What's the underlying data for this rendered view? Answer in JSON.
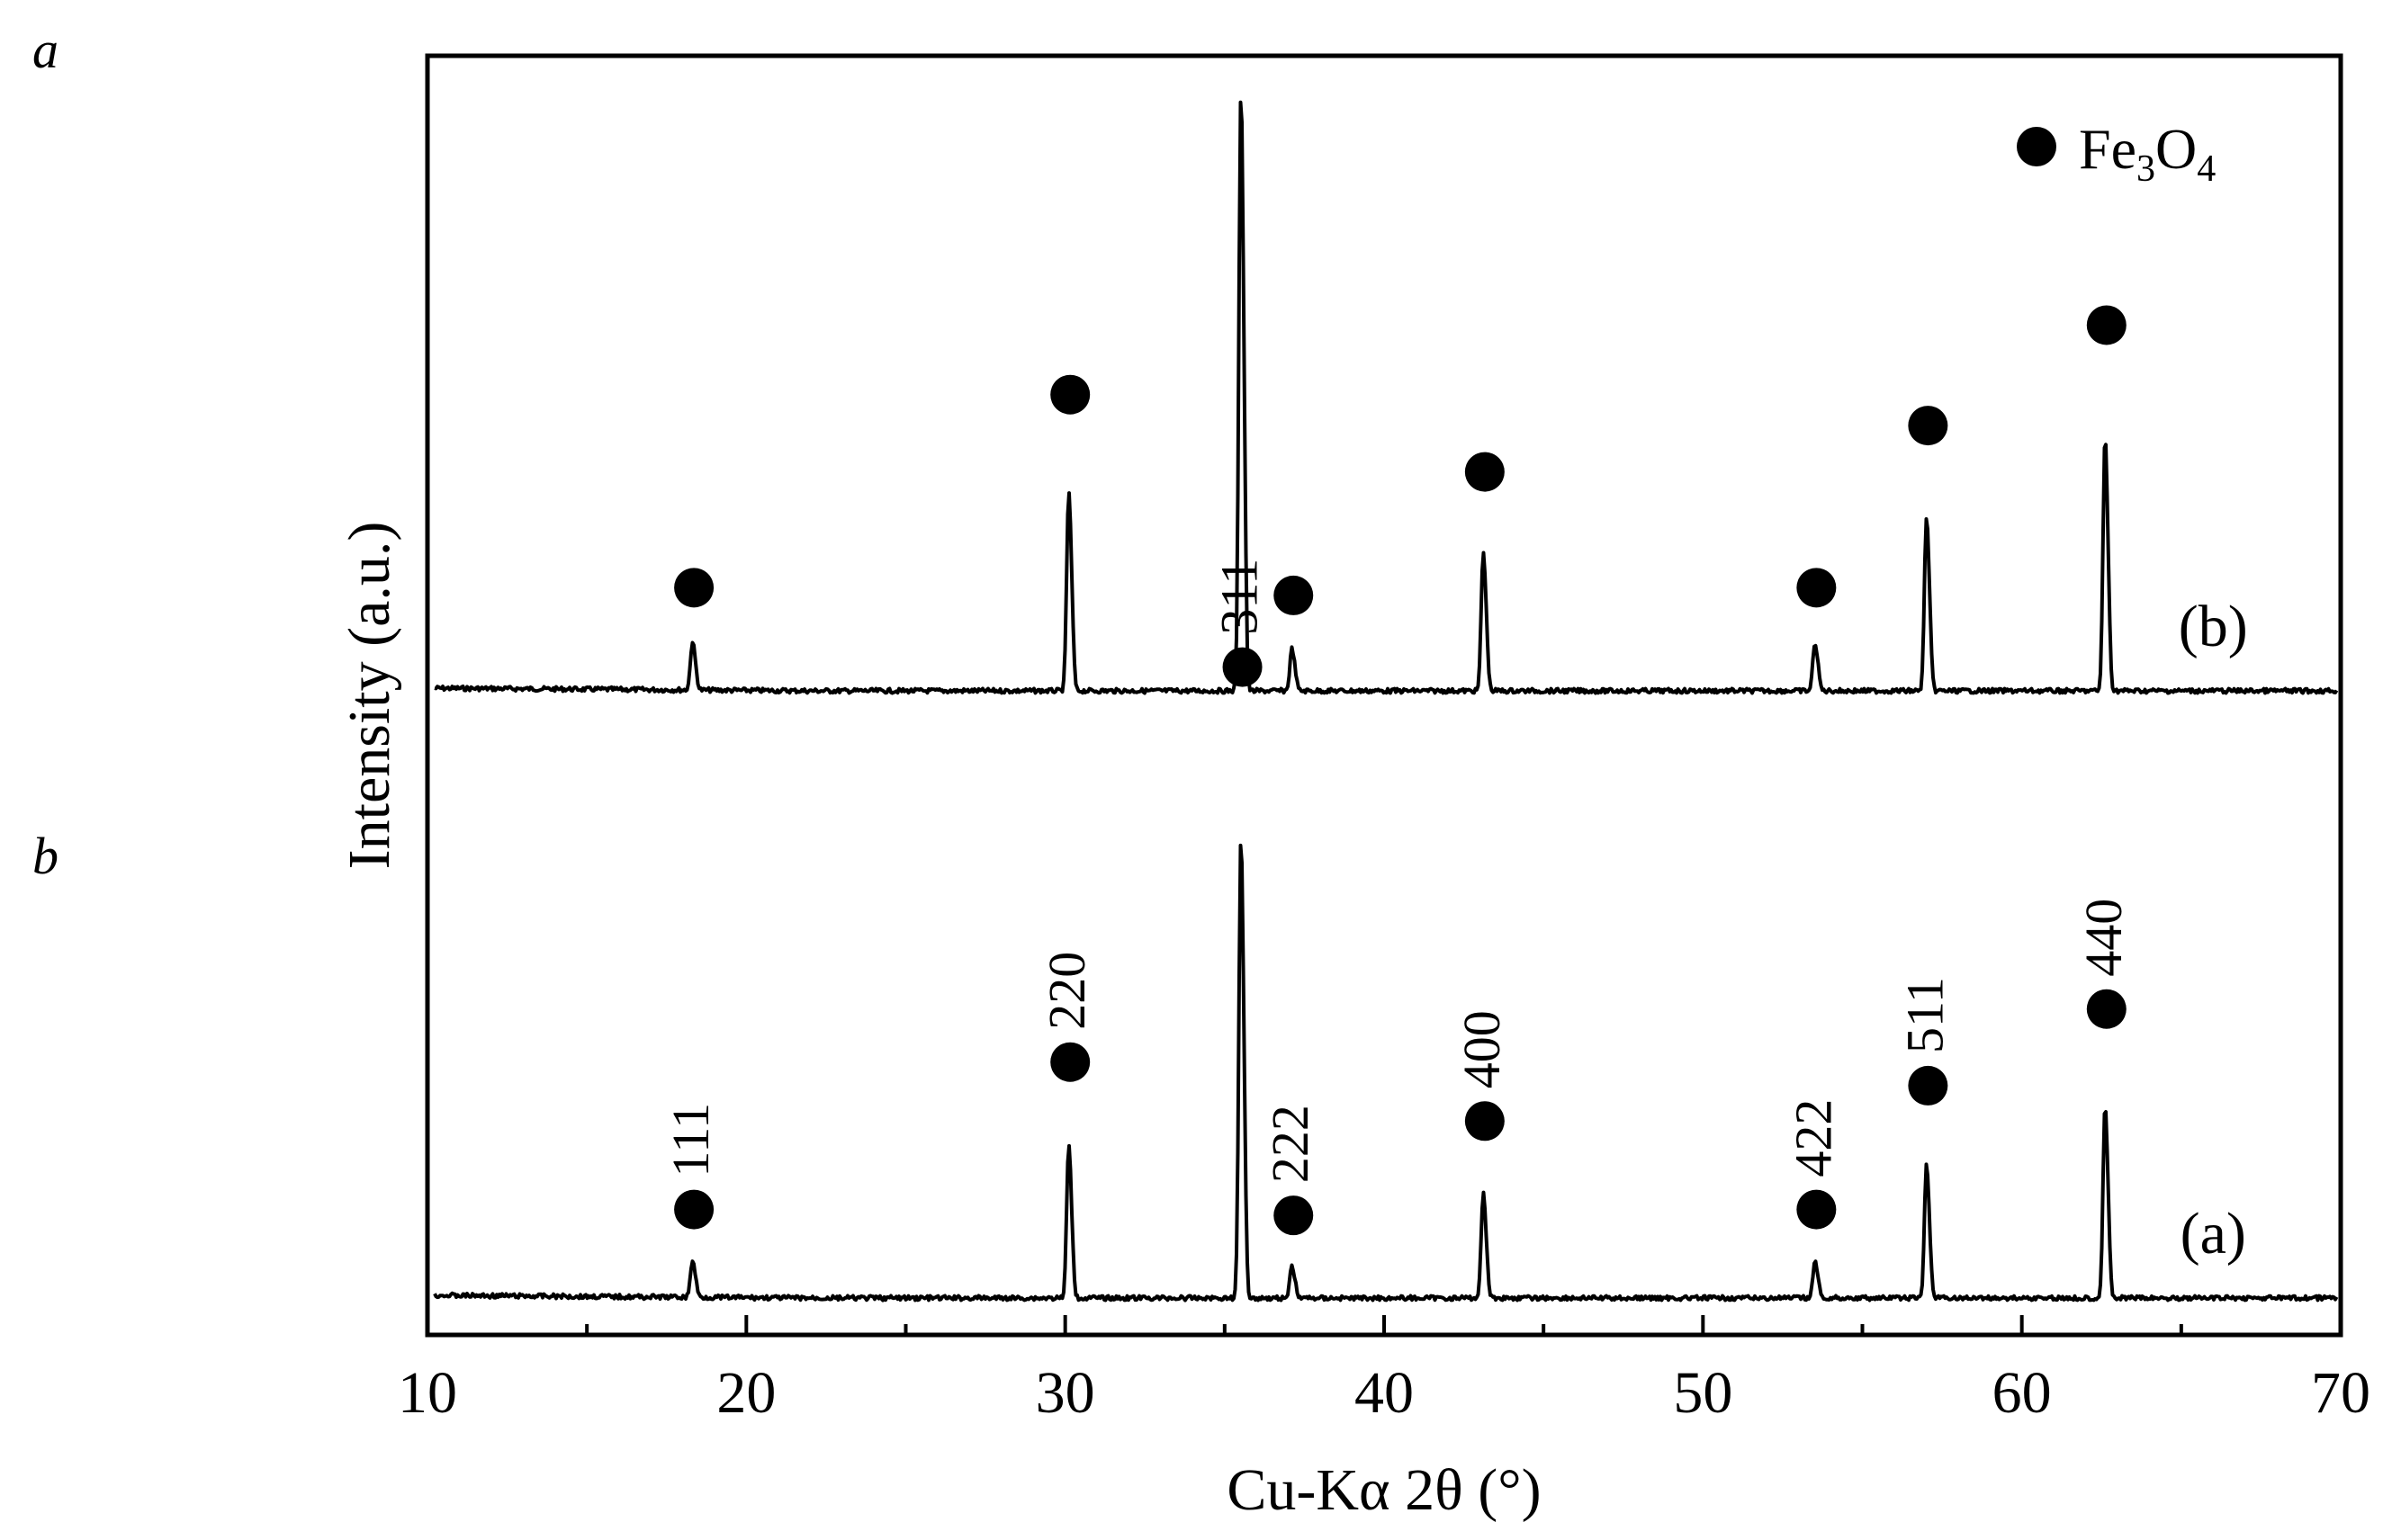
{
  "panel_labels": [
    "a",
    "b"
  ],
  "chart_data": {
    "type": "line",
    "title": "",
    "xlabel": "Cu-Kα 2θ (°)",
    "ylabel": "Intensity (a.u.)",
    "xlim": [
      10,
      70
    ],
    "x_ticks": [
      "10",
      "20",
      "30",
      "40",
      "50",
      "60",
      "70"
    ],
    "y_ticks_shown": false,
    "grid": false,
    "legend": {
      "marker": "filled-circle",
      "label_main": "Fe",
      "sub1": "3",
      "label_mid": "O",
      "sub2": "4",
      "placement": "top-right"
    },
    "peaks": [
      {
        "x": 18.3,
        "hkl": "111",
        "rel": 0.08
      },
      {
        "x": 30.1,
        "hkl": "220",
        "rel": 0.33
      },
      {
        "x": 35.5,
        "hkl": "311",
        "rel": 1.0
      },
      {
        "x": 37.1,
        "hkl": "222",
        "rel": 0.07
      },
      {
        "x": 43.1,
        "hkl": "400",
        "rel": 0.23
      },
      {
        "x": 53.5,
        "hkl": "422",
        "rel": 0.08
      },
      {
        "x": 57.0,
        "hkl": "511",
        "rel": 0.29
      },
      {
        "x": 62.6,
        "hkl": "440",
        "rel": 0.42
      }
    ],
    "series": [
      {
        "name": "(b)",
        "label_x": 66.0
      },
      {
        "name": "(a)",
        "label_x": 66.0
      }
    ]
  }
}
